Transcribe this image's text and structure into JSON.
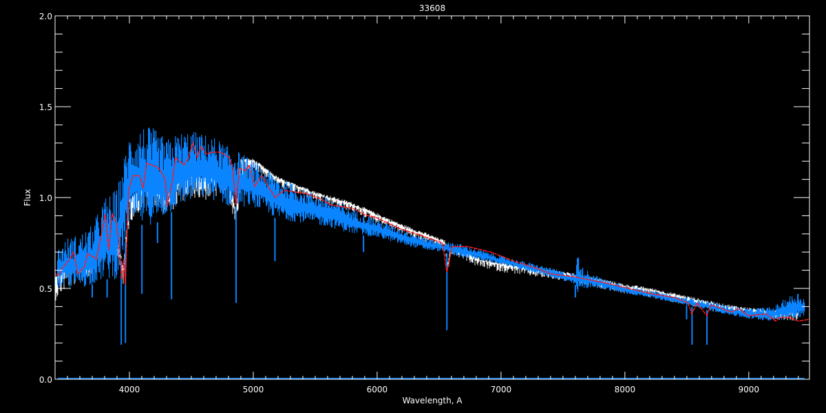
{
  "chart_data": {
    "type": "line",
    "title": "33608",
    "xlabel": "Wavelength, A",
    "ylabel": "Flux",
    "xlim": [
      3400,
      9490
    ],
    "ylim": [
      0.0,
      2.0
    ],
    "x_ticks": [
      4000,
      5000,
      6000,
      7000,
      8000,
      9000
    ],
    "x_tick_labels": [
      "4000",
      "5000",
      "6000",
      "7000",
      "8000",
      "9000"
    ],
    "x_minor_step": 100,
    "y_ticks": [
      0.0,
      0.5,
      1.0,
      1.5,
      2.0
    ],
    "y_tick_labels": [
      "0.0",
      "0.5",
      "1.0",
      "1.5",
      "2.0"
    ],
    "y_minor_step": 0.1,
    "grid": false,
    "colors": {
      "background": "#000000",
      "axes": "#ffffff",
      "white_series": "#ffffff",
      "blue_series": "#0a84ff",
      "red_series": "#ff1a1a"
    },
    "series": [
      {
        "color": "#ffffff",
        "style": "solid",
        "x": [
          3400,
          3500,
          3600,
          3700,
          3800,
          3900,
          3950,
          4000,
          4100,
          4200,
          4300,
          4400,
          4500,
          4600,
          4700,
          4800,
          4860,
          4900,
          5000,
          5100,
          5200,
          5300,
          5400,
          5500,
          5600,
          5800,
          6000,
          6200,
          6400,
          6550,
          6563,
          6600,
          6700,
          6800,
          7000,
          7200,
          7300,
          7500,
          7800,
          8000,
          8200,
          8400,
          8600,
          8800,
          9000,
          9200,
          9400
        ],
        "y": [
          0.55,
          0.62,
          0.65,
          0.68,
          0.8,
          0.8,
          0.6,
          0.98,
          1.05,
          1.08,
          1.02,
          1.08,
          1.12,
          1.1,
          1.12,
          1.14,
          0.9,
          1.2,
          1.2,
          1.15,
          1.1,
          1.07,
          1.05,
          1.02,
          1.0,
          0.96,
          0.9,
          0.84,
          0.79,
          0.75,
          0.62,
          0.72,
          0.7,
          0.66,
          0.63,
          0.61,
          0.6,
          0.58,
          0.54,
          0.51,
          0.49,
          0.46,
          0.43,
          0.4,
          0.38,
          0.37,
          0.36
        ]
      },
      {
        "color": "#0a84ff",
        "style": "solid",
        "envelope_x": [
          3420,
          3500,
          3600,
          3700,
          3800,
          3900,
          4000,
          4100,
          4200,
          4300,
          4400,
          4500,
          4600,
          4700,
          4800,
          4900,
          5000,
          5200,
          5400,
          5600,
          5800,
          6000,
          6200,
          6400,
          6550,
          6600,
          6800,
          7000,
          7300,
          7600,
          7620,
          7650,
          7800,
          8000,
          8200,
          8400,
          8600,
          8800,
          9000,
          9200,
          9300,
          9400,
          9450
        ],
        "upper": [
          0.72,
          0.78,
          0.8,
          0.85,
          1.0,
          1.05,
          1.35,
          1.4,
          1.38,
          1.32,
          1.36,
          1.37,
          1.35,
          1.33,
          1.28,
          1.25,
          1.2,
          1.12,
          1.05,
          1.0,
          0.94,
          0.88,
          0.83,
          0.78,
          0.75,
          0.76,
          0.72,
          0.68,
          0.63,
          0.58,
          0.72,
          0.62,
          0.56,
          0.52,
          0.49,
          0.46,
          0.44,
          0.41,
          0.39,
          0.4,
          0.45,
          0.48,
          0.45
        ],
        "lower": [
          0.5,
          0.5,
          0.5,
          0.52,
          0.55,
          0.55,
          0.85,
          0.85,
          0.85,
          0.9,
          0.95,
          0.98,
          1.0,
          0.98,
          0.95,
          0.95,
          0.95,
          0.88,
          0.86,
          0.84,
          0.8,
          0.78,
          0.74,
          0.71,
          0.7,
          0.68,
          0.66,
          0.63,
          0.58,
          0.52,
          0.45,
          0.5,
          0.5,
          0.47,
          0.45,
          0.42,
          0.39,
          0.36,
          0.33,
          0.32,
          0.33,
          0.34,
          0.34
        ],
        "absorption_lines": [
          [
            3700,
            0.45
          ],
          [
            3820,
            0.45
          ],
          [
            3934,
            0.19
          ],
          [
            3968,
            0.2
          ],
          [
            4101,
            0.47
          ],
          [
            4227,
            0.75
          ],
          [
            4340,
            0.44
          ],
          [
            4861,
            0.42
          ],
          [
            5175,
            0.65
          ],
          [
            5890,
            0.7
          ],
          [
            6563,
            0.27
          ],
          [
            7600,
            0.45
          ],
          [
            8498,
            0.33
          ],
          [
            8542,
            0.19
          ],
          [
            8662,
            0.19
          ]
        ],
        "near_zero_level": 0.005
      },
      {
        "color": "#ff1a1a",
        "style": "dashed",
        "x": [
          3400,
          3430,
          3456,
          3511,
          3550,
          3583,
          3639,
          3661,
          3706,
          3733,
          3772,
          3806,
          3833,
          3861,
          3900,
          3939,
          3956,
          3967,
          3994,
          4028,
          4083,
          4111,
          4139,
          4217,
          4250,
          4289,
          4306,
          4344,
          4372,
          4439,
          4472,
          4511,
          4550,
          4578,
          4622,
          4678,
          4733,
          4806,
          4833,
          4861,
          4889,
          4939,
          4967,
          5011,
          5067,
          5178,
          5250,
          5344,
          5439,
          5550,
          5622,
          5806,
          5900,
          5994,
          6178,
          6361,
          6528,
          6563,
          6606,
          6733,
          6917,
          7106,
          7289,
          7400,
          7583,
          7844,
          8028,
          8217,
          8400,
          8511,
          8539,
          8583,
          8661,
          8694,
          8861,
          8917,
          9000,
          9139,
          9217,
          9250,
          9328,
          9400,
          9490
        ],
        "y": [
          0.58,
          0.57,
          0.61,
          0.655,
          0.7,
          0.58,
          0.62,
          0.69,
          0.675,
          0.66,
          0.79,
          0.91,
          0.71,
          0.91,
          0.85,
          0.55,
          0.66,
          0.52,
          1.04,
          1.12,
          1.12,
          1.05,
          1.19,
          1.17,
          1.15,
          1.1,
          0.95,
          1.08,
          1.22,
          1.18,
          1.21,
          1.3,
          1.22,
          1.28,
          1.24,
          1.25,
          1.25,
          1.22,
          1.16,
          0.96,
          1.16,
          1.15,
          1.18,
          1.06,
          1.12,
          1.0,
          1.04,
          1.03,
          1.02,
          0.99,
          0.96,
          0.94,
          0.905,
          0.89,
          0.83,
          0.79,
          0.75,
          0.59,
          0.73,
          0.73,
          0.7,
          0.65,
          0.61,
          0.58,
          0.565,
          0.53,
          0.5,
          0.47,
          0.45,
          0.42,
          0.36,
          0.42,
          0.35,
          0.41,
          0.37,
          0.39,
          0.35,
          0.36,
          0.32,
          0.34,
          0.34,
          0.32,
          0.33
        ]
      }
    ]
  }
}
